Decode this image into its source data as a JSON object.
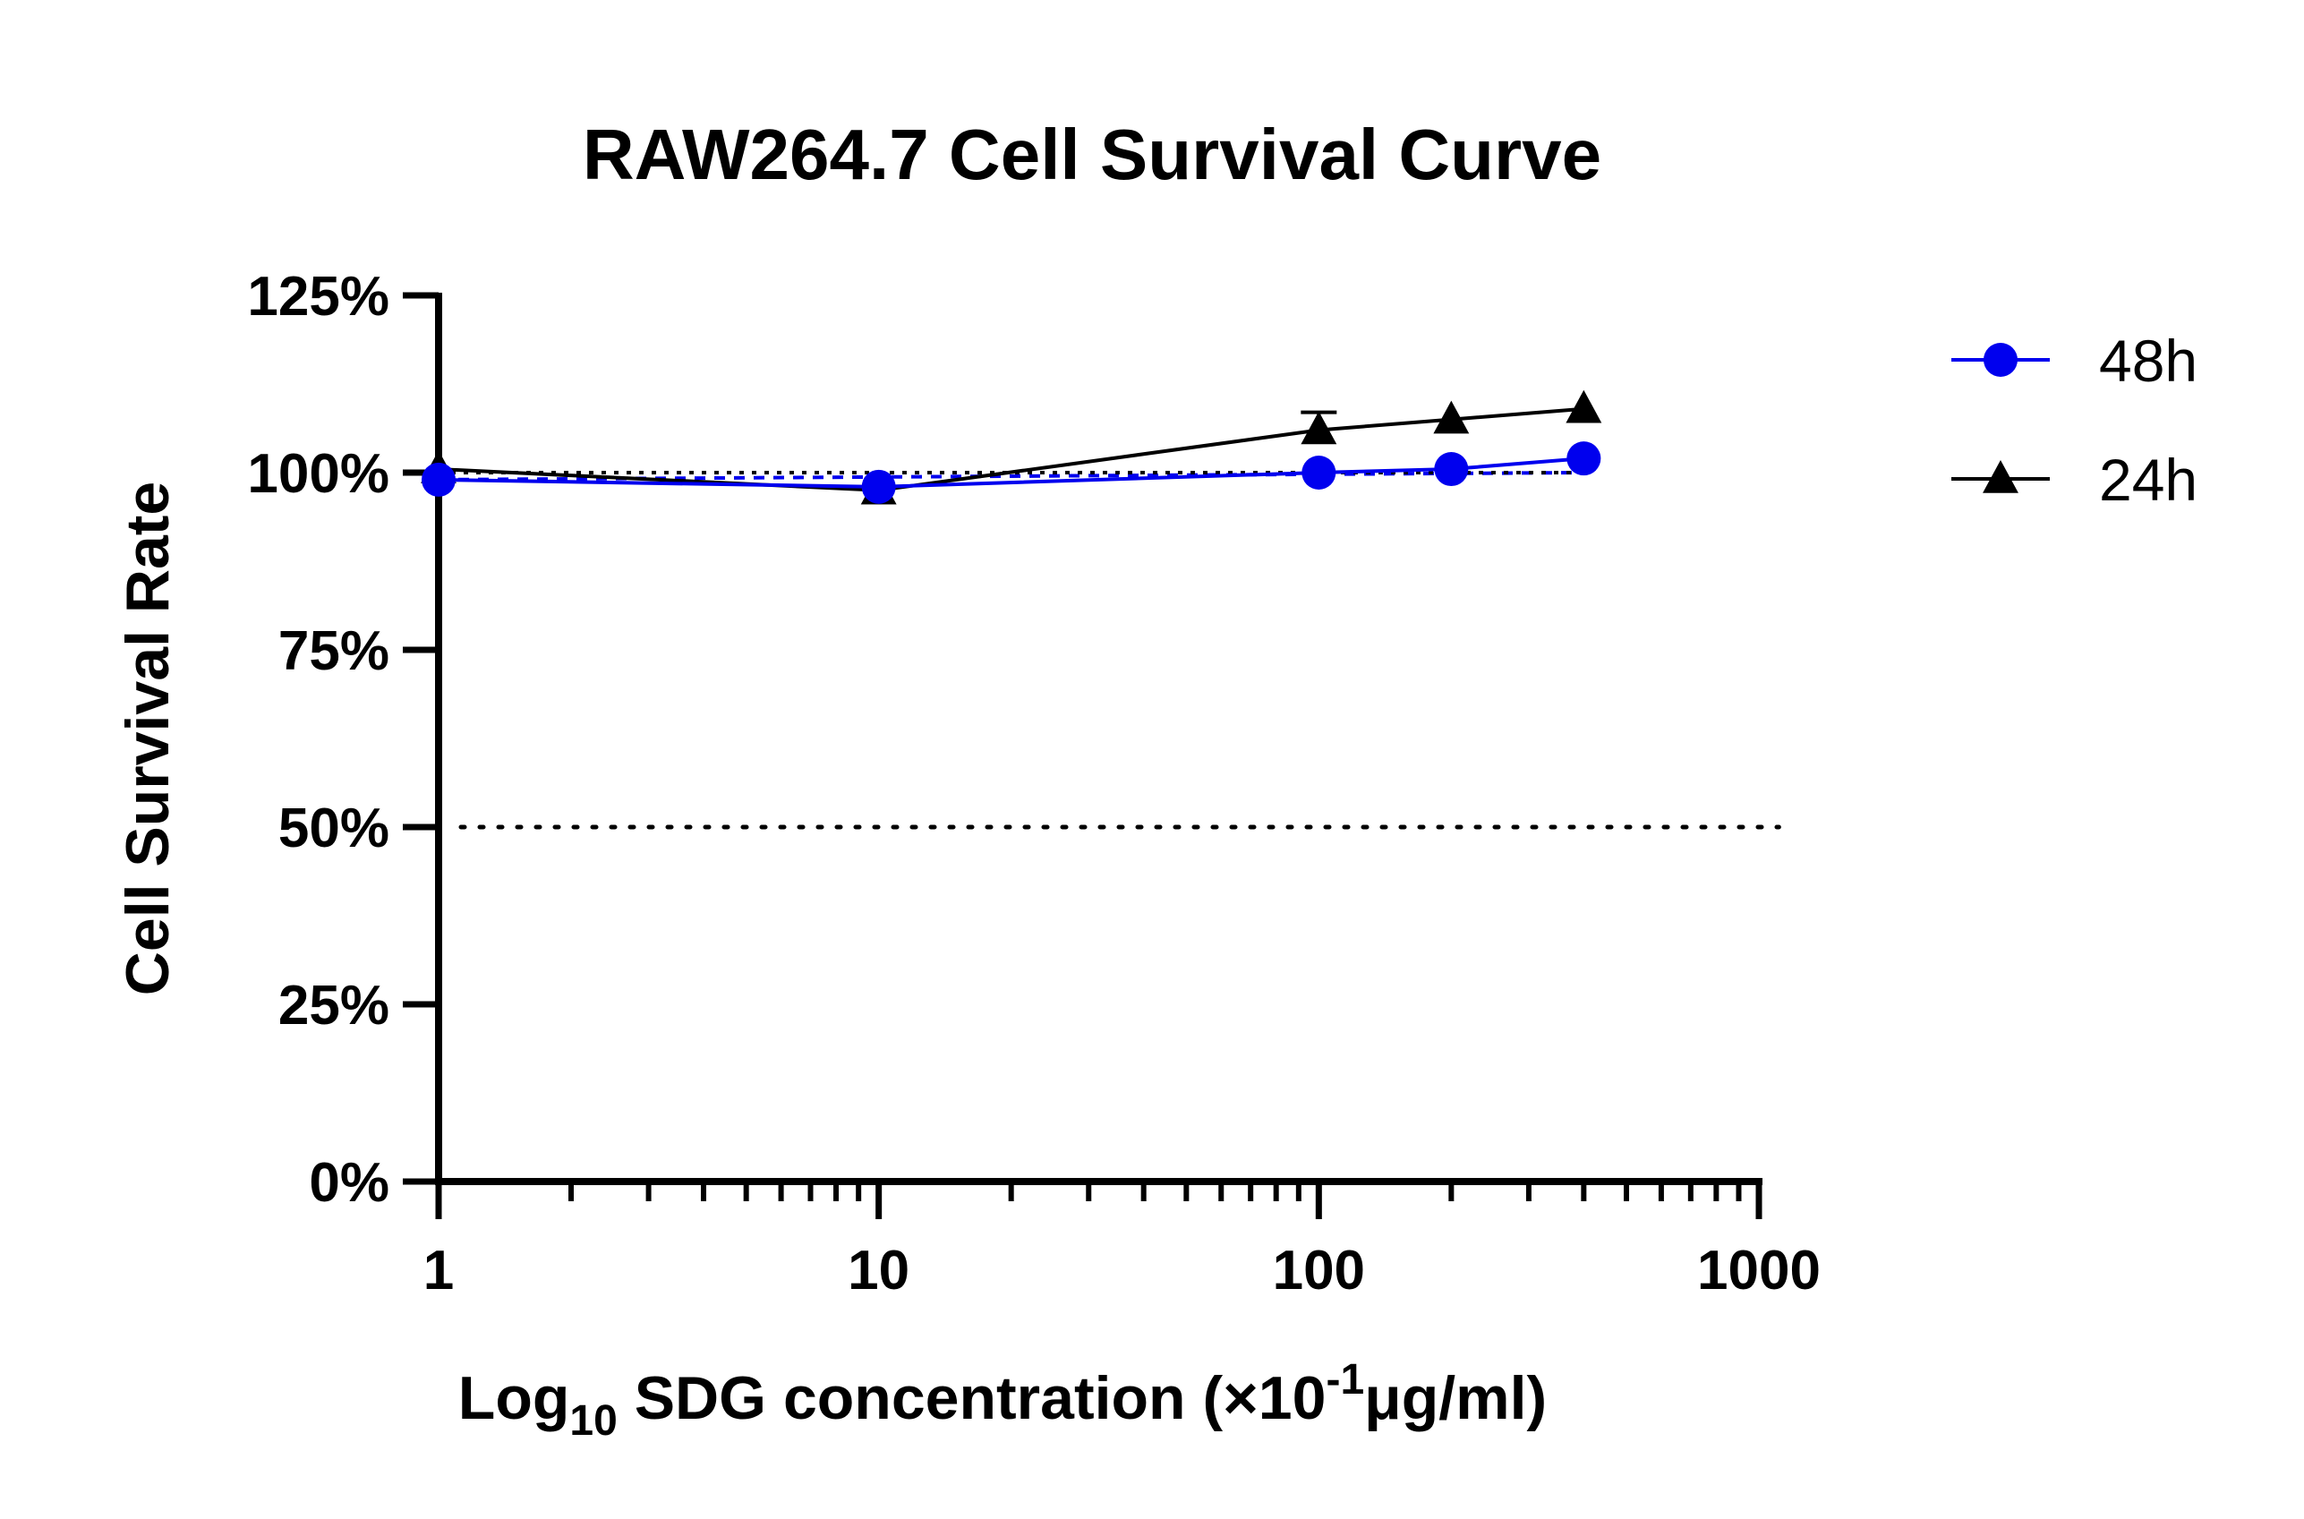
{
  "chart_data": {
    "type": "line",
    "title": "RAW264.7 Cell Survival Curve",
    "xlabel": {
      "prefix": "Log",
      "prefix_subscript": "10",
      "main": " SDG concentration (×10",
      "superscript": "-1",
      "suffix": "μg/ml)"
    },
    "ylabel": "Cell Survival Rate",
    "x_scale": "log",
    "xlim": [
      1,
      1000
    ],
    "ylim": [
      0,
      125
    ],
    "x_ticks": [
      1,
      10,
      100,
      1000
    ],
    "x_tick_labels": [
      "1",
      "10",
      "100",
      "1000"
    ],
    "y_ticks": [
      0,
      25,
      50,
      75,
      100,
      125
    ],
    "y_tick_labels": [
      "0%",
      "25%",
      "50%",
      "75%",
      "100%",
      "125%"
    ],
    "legend_position": "right",
    "series": [
      {
        "name": "48h",
        "color": "#0000ee",
        "marker": "circle",
        "x": [
          1,
          10,
          100,
          200,
          400
        ],
        "y": [
          99,
          98,
          100,
          100.5,
          102
        ],
        "error": [
          0.5,
          0.5,
          0.5,
          0.5,
          0.5
        ]
      },
      {
        "name": "24h",
        "color": "#000000",
        "marker": "triangle",
        "x": [
          1,
          10,
          100,
          200,
          400
        ],
        "y": [
          100.5,
          97.5,
          106,
          107.5,
          109
        ],
        "error": [
          0.5,
          0.5,
          2.5,
          0.8,
          0.5
        ]
      }
    ],
    "reference_lines": [
      {
        "y": 50,
        "style": "dotted",
        "x_from": 1,
        "x_to": 800
      }
    ],
    "fit_lines": [
      {
        "series": "48h",
        "style": "dashed",
        "x_from": 1,
        "x_to": 400,
        "y_from": 99,
        "y_to": 100
      },
      {
        "series": "24h",
        "style": "dotted",
        "x_from": 1,
        "x_to": 400,
        "y_from": 100,
        "y_to": 100
      }
    ]
  }
}
